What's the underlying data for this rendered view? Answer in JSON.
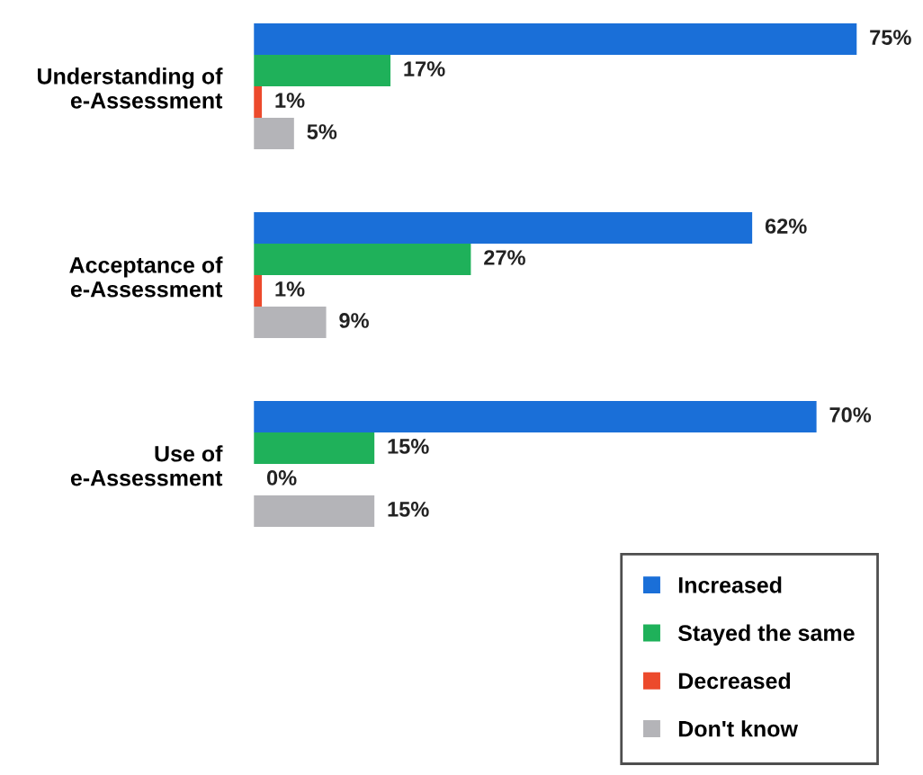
{
  "chart_data": {
    "type": "bar",
    "orientation": "horizontal",
    "categories": [
      "Understanding of\ne-Assessment",
      "Acceptance of\ne-Assessment",
      "Use of\ne-Assessment"
    ],
    "series": [
      {
        "name": "Increased",
        "color": "#1a6fd8",
        "values": [
          75,
          62,
          70
        ],
        "value_labels": [
          "75%",
          "62%",
          "70%"
        ]
      },
      {
        "name": "Stayed the same",
        "color": "#1fb15a",
        "values": [
          17,
          27,
          15
        ],
        "value_labels": [
          "17%",
          "27%",
          "15%"
        ]
      },
      {
        "name": "Decreased",
        "color": "#ec4a2c",
        "values": [
          1,
          1,
          0
        ],
        "value_labels": [
          "1%",
          "1%",
          "0%"
        ]
      },
      {
        "name": "Don't know",
        "color": "#b4b4b8",
        "values": [
          5,
          9,
          15
        ],
        "value_labels": [
          "5%",
          "9%",
          "15%"
        ]
      }
    ],
    "legend": "bottom right",
    "grid": false
  }
}
